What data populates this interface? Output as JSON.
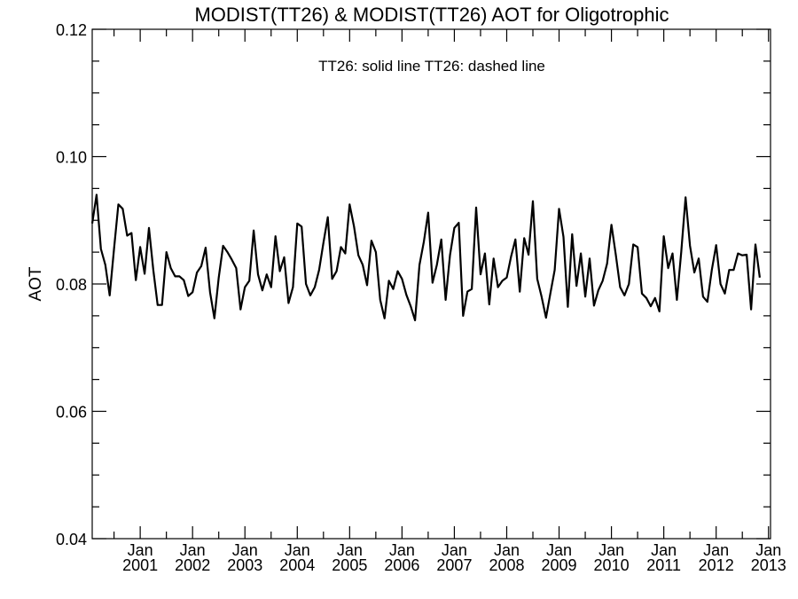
{
  "chart_data": {
    "type": "line",
    "title": "MODIST(TT26) & MODIST(TT26)  AOT for Oligotrophic",
    "legend_text": "TT26: solid line   TT26: dashed line",
    "xlabel": "",
    "ylabel": "AOT",
    "ylim": [
      0.04,
      0.12
    ],
    "y_ticks": [
      "0.04",
      "0.06",
      "0.08",
      "0.10",
      "0.12"
    ],
    "xlim": [
      "2000-02-01",
      "2013-01-15"
    ],
    "x_ticks": [
      {
        "date": "2001-01-01",
        "month": "Jan",
        "year": "2001"
      },
      {
        "date": "2002-01-01",
        "month": "Jan",
        "year": "2002"
      },
      {
        "date": "2003-01-01",
        "month": "Jan",
        "year": "2003"
      },
      {
        "date": "2004-01-01",
        "month": "Jan",
        "year": "2004"
      },
      {
        "date": "2005-01-01",
        "month": "Jan",
        "year": "2005"
      },
      {
        "date": "2006-01-01",
        "month": "Jan",
        "year": "2006"
      },
      {
        "date": "2007-01-01",
        "month": "Jan",
        "year": "2007"
      },
      {
        "date": "2008-01-01",
        "month": "Jan",
        "year": "2008"
      },
      {
        "date": "2009-01-01",
        "month": "Jan",
        "year": "2009"
      },
      {
        "date": "2010-01-01",
        "month": "Jan",
        "year": "2010"
      },
      {
        "date": "2011-01-01",
        "month": "Jan",
        "year": "2011"
      },
      {
        "date": "2012-01-01",
        "month": "Jan",
        "year": "2012"
      },
      {
        "date": "2013-01-01",
        "month": "Jan",
        "year": "2013"
      }
    ],
    "grid": false,
    "series": [
      {
        "style": "solid",
        "color": "#000000",
        "points": [
          [
            "2000-02",
            0.0895
          ],
          [
            "2000-03",
            0.094
          ],
          [
            "2000-04",
            0.0855
          ],
          [
            "2000-05",
            0.083
          ],
          [
            "2000-06",
            0.0782
          ],
          [
            "2000-07",
            0.0855
          ],
          [
            "2000-08",
            0.0925
          ],
          [
            "2000-09",
            0.0918
          ],
          [
            "2000-10",
            0.0876
          ],
          [
            "2000-11",
            0.088
          ],
          [
            "2000-12",
            0.0806
          ],
          [
            "2001-01",
            0.0858
          ],
          [
            "2001-02",
            0.0816
          ],
          [
            "2001-03",
            0.0888
          ],
          [
            "2001-04",
            0.0822
          ],
          [
            "2001-05",
            0.0767
          ],
          [
            "2001-06",
            0.0767
          ],
          [
            "2001-07",
            0.085
          ],
          [
            "2001-08",
            0.0825
          ],
          [
            "2001-09",
            0.0812
          ],
          [
            "2001-10",
            0.0812
          ],
          [
            "2001-11",
            0.0806
          ],
          [
            "2001-12",
            0.0781
          ],
          [
            "2002-01",
            0.0787
          ],
          [
            "2002-02",
            0.0818
          ],
          [
            "2002-03",
            0.0828
          ],
          [
            "2002-04",
            0.0857
          ],
          [
            "2002-05",
            0.0787
          ],
          [
            "2002-06",
            0.0746
          ],
          [
            "2002-07",
            0.081
          ],
          [
            "2002-08",
            0.086
          ],
          [
            "2002-09",
            0.085
          ],
          [
            "2002-10",
            0.0838
          ],
          [
            "2002-11",
            0.0825
          ],
          [
            "2002-12",
            0.076
          ],
          [
            "2003-01",
            0.0795
          ],
          [
            "2003-02",
            0.0805
          ],
          [
            "2003-03",
            0.0884
          ],
          [
            "2003-04",
            0.0815
          ],
          [
            "2003-05",
            0.079
          ],
          [
            "2003-06",
            0.0815
          ],
          [
            "2003-07",
            0.0795
          ],
          [
            "2003-08",
            0.0875
          ],
          [
            "2003-09",
            0.082
          ],
          [
            "2003-10",
            0.0842
          ],
          [
            "2003-11",
            0.077
          ],
          [
            "2003-12",
            0.0795
          ],
          [
            "2004-01",
            0.0895
          ],
          [
            "2004-02",
            0.089
          ],
          [
            "2004-03",
            0.08
          ],
          [
            "2004-04",
            0.0782
          ],
          [
            "2004-05",
            0.0795
          ],
          [
            "2004-06",
            0.0822
          ],
          [
            "2004-07",
            0.0865
          ],
          [
            "2004-08",
            0.0905
          ],
          [
            "2004-09",
            0.0808
          ],
          [
            "2004-10",
            0.082
          ],
          [
            "2004-11",
            0.0858
          ],
          [
            "2004-12",
            0.0848
          ],
          [
            "2005-01",
            0.0925
          ],
          [
            "2005-02",
            0.089
          ],
          [
            "2005-03",
            0.0845
          ],
          [
            "2005-04",
            0.083
          ],
          [
            "2005-05",
            0.0798
          ],
          [
            "2005-06",
            0.0868
          ],
          [
            "2005-07",
            0.085
          ],
          [
            "2005-08",
            0.0775
          ],
          [
            "2005-09",
            0.0746
          ],
          [
            "2005-10",
            0.0805
          ],
          [
            "2005-11",
            0.0792
          ],
          [
            "2005-12",
            0.082
          ],
          [
            "2006-01",
            0.0808
          ],
          [
            "2006-02",
            0.0783
          ],
          [
            "2006-03",
            0.0765
          ],
          [
            "2006-04",
            0.0743
          ],
          [
            "2006-05",
            0.083
          ],
          [
            "2006-06",
            0.0866
          ],
          [
            "2006-07",
            0.0912
          ],
          [
            "2006-08",
            0.0802
          ],
          [
            "2006-09",
            0.083
          ],
          [
            "2006-10",
            0.087
          ],
          [
            "2006-11",
            0.0775
          ],
          [
            "2006-12",
            0.0845
          ],
          [
            "2007-01",
            0.0888
          ],
          [
            "2007-02",
            0.0896
          ],
          [
            "2007-03",
            0.075
          ],
          [
            "2007-04",
            0.0788
          ],
          [
            "2007-05",
            0.0792
          ],
          [
            "2007-06",
            0.092
          ],
          [
            "2007-07",
            0.0815
          ],
          [
            "2007-08",
            0.0848
          ],
          [
            "2007-09",
            0.0768
          ],
          [
            "2007-10",
            0.084
          ],
          [
            "2007-11",
            0.0795
          ],
          [
            "2007-12",
            0.0805
          ],
          [
            "2008-01",
            0.081
          ],
          [
            "2008-02",
            0.0843
          ],
          [
            "2008-03",
            0.087
          ],
          [
            "2008-04",
            0.0788
          ],
          [
            "2008-05",
            0.0872
          ],
          [
            "2008-06",
            0.0846
          ],
          [
            "2008-07",
            0.093
          ],
          [
            "2008-08",
            0.0808
          ],
          [
            "2008-09",
            0.078
          ],
          [
            "2008-10",
            0.0747
          ],
          [
            "2008-11",
            0.0785
          ],
          [
            "2008-12",
            0.0822
          ],
          [
            "2009-01",
            0.0918
          ],
          [
            "2009-02",
            0.0874
          ],
          [
            "2009-03",
            0.0764
          ],
          [
            "2009-04",
            0.0878
          ],
          [
            "2009-05",
            0.0797
          ],
          [
            "2009-06",
            0.0848
          ],
          [
            "2009-07",
            0.078
          ],
          [
            "2009-08",
            0.084
          ],
          [
            "2009-09",
            0.0766
          ],
          [
            "2009-10",
            0.079
          ],
          [
            "2009-11",
            0.0805
          ],
          [
            "2009-12",
            0.0832
          ],
          [
            "2010-01",
            0.0893
          ],
          [
            "2010-02",
            0.0846
          ],
          [
            "2010-03",
            0.0795
          ],
          [
            "2010-04",
            0.0782
          ],
          [
            "2010-05",
            0.08
          ],
          [
            "2010-06",
            0.0862
          ],
          [
            "2010-07",
            0.0858
          ],
          [
            "2010-08",
            0.0785
          ],
          [
            "2010-09",
            0.0778
          ],
          [
            "2010-10",
            0.0765
          ],
          [
            "2010-11",
            0.0778
          ],
          [
            "2010-12",
            0.0757
          ],
          [
            "2011-01",
            0.0875
          ],
          [
            "2011-02",
            0.0825
          ],
          [
            "2011-03",
            0.0848
          ],
          [
            "2011-04",
            0.0775
          ],
          [
            "2011-05",
            0.085
          ],
          [
            "2011-06",
            0.0936
          ],
          [
            "2011-07",
            0.086
          ],
          [
            "2011-08",
            0.0818
          ],
          [
            "2011-09",
            0.084
          ],
          [
            "2011-10",
            0.078
          ],
          [
            "2011-11",
            0.0772
          ],
          [
            "2011-12",
            0.0822
          ],
          [
            "2012-01",
            0.0861
          ],
          [
            "2012-02",
            0.08
          ],
          [
            "2012-03",
            0.0785
          ],
          [
            "2012-04",
            0.0822
          ],
          [
            "2012-05",
            0.0822
          ],
          [
            "2012-06",
            0.0848
          ],
          [
            "2012-07",
            0.0845
          ],
          [
            "2012-08",
            0.0846
          ],
          [
            "2012-09",
            0.076
          ],
          [
            "2012-10",
            0.0862
          ],
          [
            "2012-11",
            0.081
          ]
        ]
      }
    ]
  }
}
